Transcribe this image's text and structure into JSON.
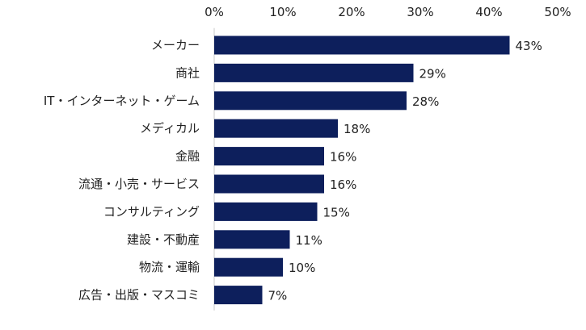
{
  "chart_data": {
    "type": "bar",
    "orientation": "horizontal",
    "categories": [
      "メーカー",
      "商社",
      "IT・インターネット・ゲーム",
      "メディカル",
      "金融",
      "流通・小売・サービス",
      "コンサルティング",
      "建設・不動産",
      "物流・運輸",
      "広告・出版・マスコミ"
    ],
    "values": [
      43,
      29,
      28,
      18,
      16,
      16,
      15,
      11,
      10,
      7
    ],
    "value_labels": [
      "43%",
      "29%",
      "28%",
      "18%",
      "16%",
      "16%",
      "15%",
      "11%",
      "10%",
      "7%"
    ],
    "xlim": [
      0,
      50
    ],
    "x_ticks": [
      0,
      10,
      20,
      30,
      40,
      50
    ],
    "x_tick_labels": [
      "0%",
      "10%",
      "20%",
      "30%",
      "40%",
      "50%"
    ],
    "axis_position": "top",
    "grid": false,
    "bar_color": "#0d1f5c"
  }
}
